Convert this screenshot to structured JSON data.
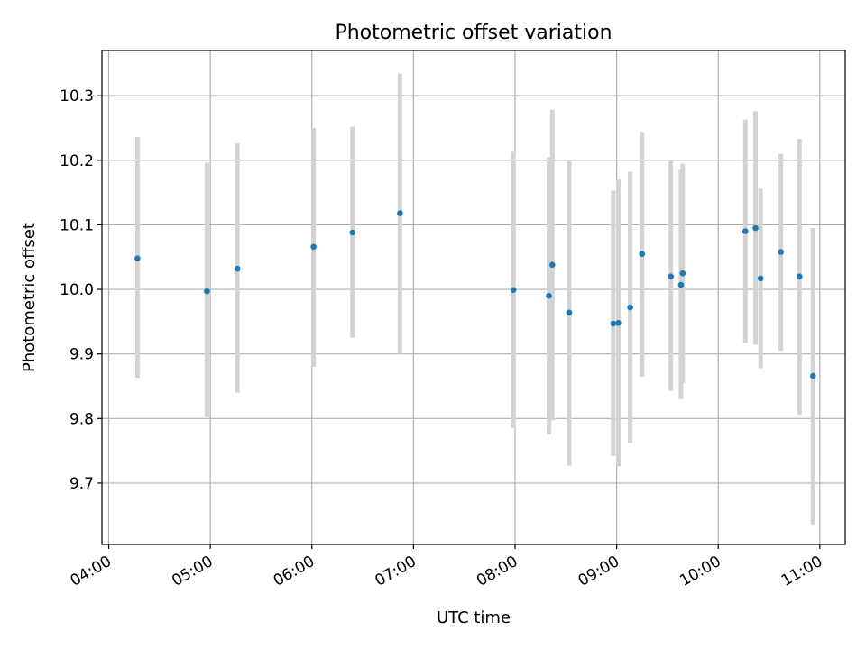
{
  "chart_data": {
    "type": "scatter",
    "title": "Photometric offset variation",
    "xlabel": "UTC time",
    "ylabel": "Photometric offset",
    "x_format": "HH:MM",
    "xlim": [
      "03:56",
      "11:15"
    ],
    "ylim": [
      9.605,
      10.37
    ],
    "grid": true,
    "x_ticks": [
      "04:00",
      "05:00",
      "06:00",
      "07:00",
      "08:00",
      "09:00",
      "10:00",
      "11:00"
    ],
    "y_ticks": [
      9.7,
      9.8,
      9.9,
      10.0,
      10.1,
      10.2,
      10.3
    ],
    "y_tick_labels": [
      "9.7",
      "9.8",
      "9.9",
      "10.0",
      "10.1",
      "10.2",
      "10.3"
    ],
    "colors": {
      "points": "#1f77b4",
      "error_bars": "#d3d3d3"
    },
    "points": [
      {
        "x": "04:17",
        "y": 10.048,
        "err_low": 9.863,
        "err_high": 10.236
      },
      {
        "x": "04:58",
        "y": 9.997,
        "err_low": 9.802,
        "err_high": 10.196
      },
      {
        "x": "05:16",
        "y": 10.032,
        "err_low": 9.84,
        "err_high": 10.226
      },
      {
        "x": "06:01",
        "y": 10.066,
        "err_low": 9.88,
        "err_high": 10.25
      },
      {
        "x": "06:24",
        "y": 10.088,
        "err_low": 9.925,
        "err_high": 10.252
      },
      {
        "x": "06:52",
        "y": 10.118,
        "err_low": 9.9,
        "err_high": 10.334
      },
      {
        "x": "07:59",
        "y": 9.999,
        "err_low": 9.785,
        "err_high": 10.213
      },
      {
        "x": "08:20",
        "y": 9.99,
        "err_low": 9.775,
        "err_high": 10.205
      },
      {
        "x": "08:22",
        "y": 10.038,
        "err_low": 9.797,
        "err_high": 10.278
      },
      {
        "x": "08:32",
        "y": 9.964,
        "err_low": 9.727,
        "err_high": 10.2
      },
      {
        "x": "08:58",
        "y": 9.947,
        "err_low": 9.742,
        "err_high": 10.153
      },
      {
        "x": "09:01",
        "y": 9.948,
        "err_low": 9.726,
        "err_high": 10.17
      },
      {
        "x": "09:08",
        "y": 9.972,
        "err_low": 9.762,
        "err_high": 10.182
      },
      {
        "x": "09:15",
        "y": 10.055,
        "err_low": 9.865,
        "err_high": 10.244
      },
      {
        "x": "09:32",
        "y": 10.02,
        "err_low": 9.843,
        "err_high": 10.2
      },
      {
        "x": "09:38",
        "y": 10.007,
        "err_low": 9.83,
        "err_high": 10.185
      },
      {
        "x": "09:39",
        "y": 10.025,
        "err_low": 9.855,
        "err_high": 10.195
      },
      {
        "x": "10:16",
        "y": 10.09,
        "err_low": 9.917,
        "err_high": 10.263
      },
      {
        "x": "10:22",
        "y": 10.095,
        "err_low": 9.914,
        "err_high": 10.276
      },
      {
        "x": "10:25",
        "y": 10.017,
        "err_low": 9.878,
        "err_high": 10.156
      },
      {
        "x": "10:37",
        "y": 10.058,
        "err_low": 9.905,
        "err_high": 10.21
      },
      {
        "x": "10:48",
        "y": 10.02,
        "err_low": 9.806,
        "err_high": 10.233
      },
      {
        "x": "10:56",
        "y": 9.866,
        "err_low": 9.636,
        "err_high": 10.095
      }
    ]
  }
}
